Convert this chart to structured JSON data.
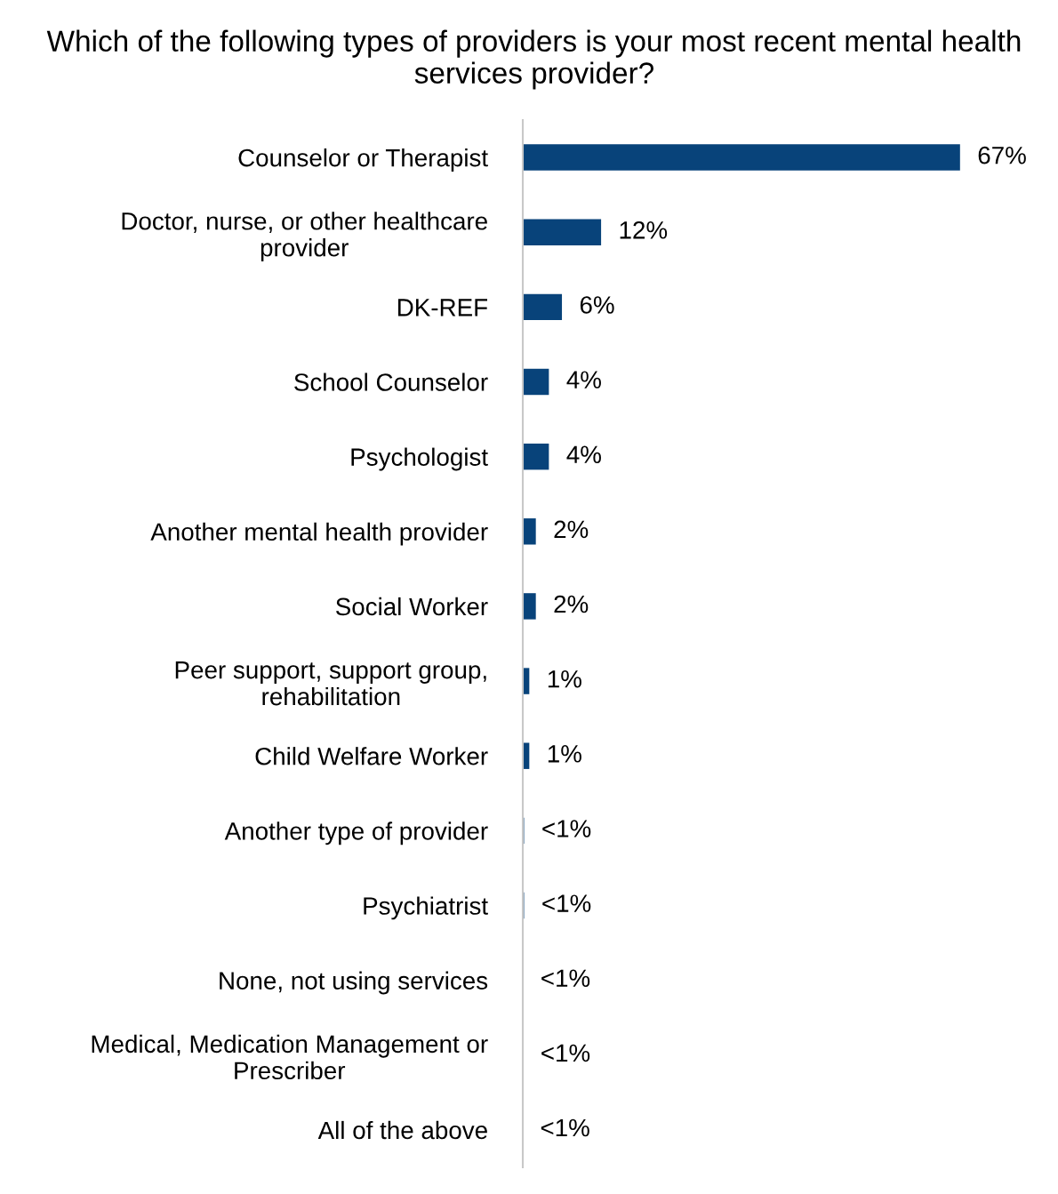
{
  "chart_data": {
    "type": "bar",
    "orientation": "horizontal",
    "title": "Which of the following types of providers is your most recent mental health services provider?",
    "categories": [
      "Counselor or Therapist",
      "Doctor, nurse, or other healthcare provider",
      "DK-REF",
      "School Counselor",
      "Psychologist",
      "Another mental health provider",
      "Social Worker",
      "Peer support, support group, rehabilitation",
      "Child Welfare Worker",
      "Another type of provider",
      "Psychiatrist",
      "None, not using services",
      "Medical, Medication Management or Prescriber",
      "All of the above"
    ],
    "values": [
      67,
      12,
      6,
      4,
      4,
      2,
      2,
      1,
      1,
      0.2,
      0.2,
      0.05,
      0.05,
      0
    ],
    "value_labels": [
      "67%",
      "12%",
      "6%",
      "4%",
      "4%",
      "2%",
      "2%",
      "1%",
      "1%",
      "<1%",
      "<1%",
      "<1%",
      "<1%",
      "<1%"
    ],
    "color": "#08437a",
    "grid": false,
    "legend": false
  }
}
